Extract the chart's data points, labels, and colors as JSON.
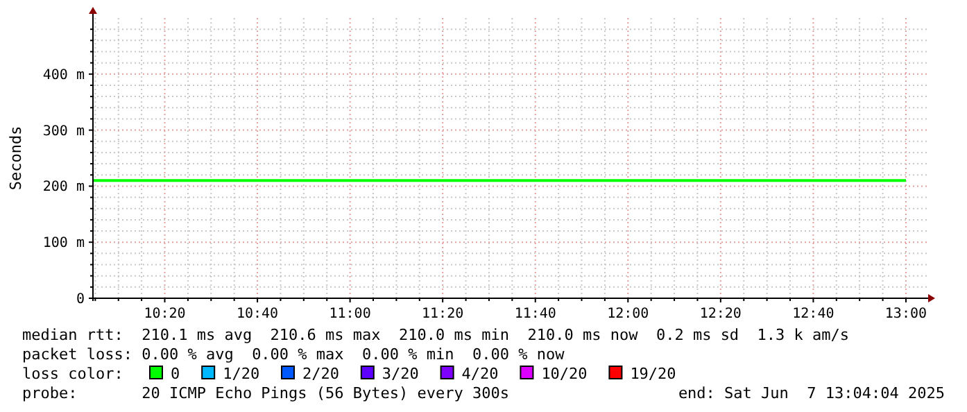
{
  "chart_data": {
    "type": "line",
    "ylabel": "Seconds",
    "legend_title": "loss color:",
    "legend": "bottom",
    "grid": true,
    "marker": "none",
    "line_style": "solid",
    "xlim": [
      10.075,
      13.075
    ],
    "ylim": [
      0,
      500
    ],
    "xticks": [
      {
        "value": 10.0833,
        "label": null
      },
      {
        "value": 10.1667,
        "label": null
      },
      {
        "value": 10.25,
        "label": null
      },
      {
        "value": 10.3333,
        "label": "10:20"
      },
      {
        "value": 10.4167,
        "label": null
      },
      {
        "value": 10.5,
        "label": null
      },
      {
        "value": 10.5833,
        "label": null
      },
      {
        "value": 10.6667,
        "label": "10:40"
      },
      {
        "value": 10.75,
        "label": null
      },
      {
        "value": 10.8333,
        "label": null
      },
      {
        "value": 10.9167,
        "label": null
      },
      {
        "value": 11,
        "label": "11:00"
      },
      {
        "value": 11.0833,
        "label": null
      },
      {
        "value": 11.1667,
        "label": null
      },
      {
        "value": 11.25,
        "label": null
      },
      {
        "value": 11.3333,
        "label": "11:20"
      },
      {
        "value": 11.4167,
        "label": null
      },
      {
        "value": 11.5,
        "label": null
      },
      {
        "value": 11.5833,
        "label": null
      },
      {
        "value": 11.6667,
        "label": "11:40"
      },
      {
        "value": 11.75,
        "label": null
      },
      {
        "value": 11.8333,
        "label": null
      },
      {
        "value": 11.9167,
        "label": null
      },
      {
        "value": 12,
        "label": "12:00"
      },
      {
        "value": 12.0833,
        "label": null
      },
      {
        "value": 12.1667,
        "label": null
      },
      {
        "value": 12.25,
        "label": null
      },
      {
        "value": 12.3333,
        "label": "12:20"
      },
      {
        "value": 12.4167,
        "label": null
      },
      {
        "value": 12.5,
        "label": null
      },
      {
        "value": 12.5833,
        "label": null
      },
      {
        "value": 12.6667,
        "label": "12:40"
      },
      {
        "value": 12.75,
        "label": null
      },
      {
        "value": 12.8333,
        "label": null
      },
      {
        "value": 12.9167,
        "label": null
      },
      {
        "value": 13,
        "label": "13:00"
      }
    ],
    "yticks": [
      0,
      {
        "value": 20,
        "label": null
      },
      {
        "value": 40,
        "label": null
      },
      {
        "value": 60,
        "label": null
      },
      {
        "value": 80,
        "label": null
      },
      {
        "value": 100,
        "label": "100 m"
      },
      {
        "value": 120,
        "label": null
      },
      {
        "value": 140,
        "label": null
      },
      {
        "value": 160,
        "label": null
      },
      {
        "value": 180,
        "label": null
      },
      {
        "value": 200,
        "label": "200 m"
      },
      {
        "value": 220,
        "label": null
      },
      {
        "value": 240,
        "label": null
      },
      {
        "value": 260,
        "label": null
      },
      {
        "value": 280,
        "label": null
      },
      {
        "value": 300,
        "label": "300 m"
      },
      {
        "value": 320,
        "label": null
      },
      {
        "value": 340,
        "label": null
      },
      {
        "value": 360,
        "label": null
      },
      {
        "value": 380,
        "label": null
      },
      {
        "value": 400,
        "label": "400 m"
      },
      {
        "value": 420,
        "label": null
      },
      {
        "value": 440,
        "label": null
      },
      {
        "value": 460,
        "label": null
      },
      {
        "value": 480,
        "label": null
      }
    ],
    "series": [
      {
        "name": "0",
        "color": "#00ff00",
        "x": [
          10.075,
          13
        ],
        "values": [
          210,
          210
        ]
      },
      {
        "name": "1/20",
        "color": "#00b8ff"
      },
      {
        "name": "2/20",
        "color": "#0059ff"
      },
      {
        "name": "3/20",
        "color": "#5e00ff"
      },
      {
        "name": "4/20",
        "color": "#7e00ff"
      },
      {
        "name": "10/20",
        "color": "#dd00ff"
      },
      {
        "name": "19/20",
        "color": "#ff0000"
      }
    ],
    "annotations": [
      "median rtt:  210.1 ms avg  210.6 ms max  210.0 ms min  210.0 ms now  0.2 ms sd  1.3 k am/s",
      "packet loss: 0.00 % avg  0.00 % max  0.00 % min  0.00 % now",
      "probe:       20 ICMP Echo Pings (56 Bytes) every 300s",
      "end: Sat Jun  7 13:04:04 2025"
    ]
  }
}
